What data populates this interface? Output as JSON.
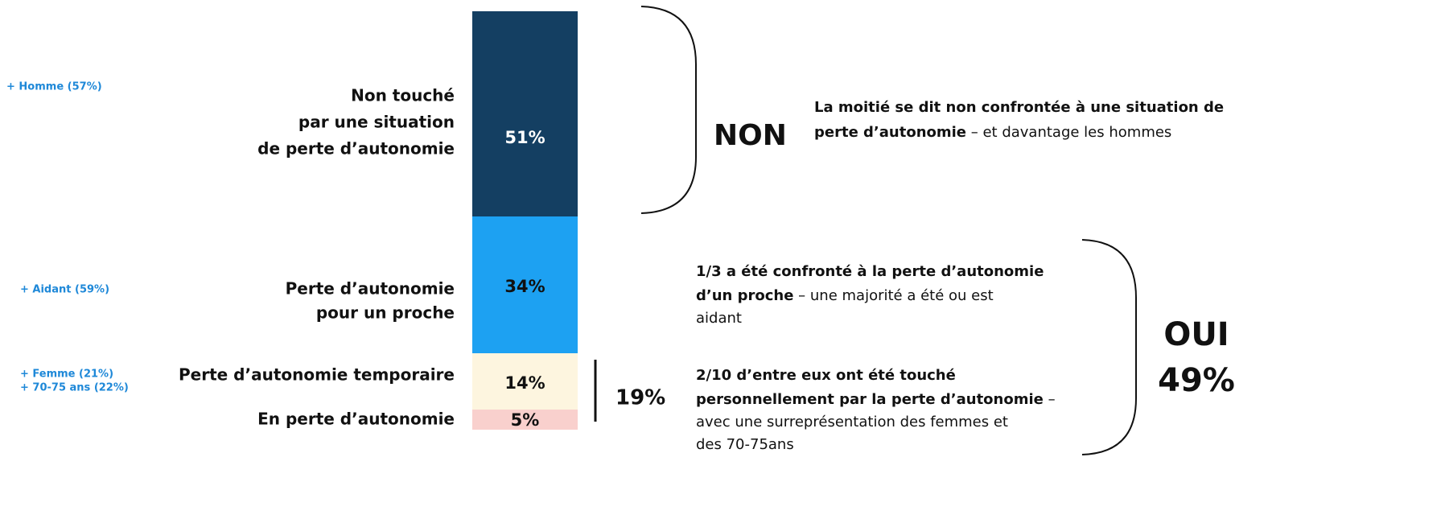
{
  "chart_data": {
    "type": "stacked_bar",
    "categories": [
      [
        "Non touché",
        "par une situation",
        "de perte d’autonomie"
      ],
      [
        "Perte d’autonomie",
        "pour un proche"
      ],
      [
        "Perte d’autonomie temporaire"
      ],
      [
        "En perte d’autonomie"
      ]
    ],
    "values": [
      51,
      34,
      14,
      5
    ],
    "value_labels": [
      "51%",
      "34%",
      "14%",
      "5%"
    ],
    "colors": [
      "#143f62",
      "#1da1f2",
      "#fdf5df",
      "#f9d0cd"
    ],
    "subgroup_notes": [
      [
        "+ Homme (57%)"
      ],
      [
        "+ Aidant (59%)"
      ],
      [
        "+ Femme (21%)",
        "+ 70-75 ans (22%)"
      ]
    ],
    "subtotal_label": "19%",
    "groups": [
      {
        "label": "NON",
        "blocks": [
          [
            [
              {
                "text": "La moitié se dit non confrontée à une situation de",
                "bold": true
              }
            ],
            [
              {
                "text": "perte d’autonomie",
                "bold": true
              },
              {
                "text": " – et davantage les hommes",
                "bold": false
              }
            ]
          ]
        ]
      },
      {
        "label": "OUI",
        "value_label": "49%",
        "blocks": [
          [
            [
              {
                "text": "1/3 a été confronté à la perte d’autonomie",
                "bold": true
              }
            ],
            [
              {
                "text": "d’un proche",
                "bold": true
              },
              {
                "text": " – une majorité a été ou est",
                "bold": false
              }
            ],
            [
              {
                "text": "aidant",
                "bold": false
              }
            ]
          ],
          [
            [
              {
                "text": "2/10 d’entre eux ont été touché",
                "bold": true
              }
            ],
            [
              {
                "text": "personnellement  par la perte d’autonomie",
                "bold": true
              },
              {
                "text": " –",
                "bold": false
              }
            ],
            [
              {
                "text": "avec une surreprésentation des femmes et",
                "bold": false
              }
            ],
            [
              {
                "text": "des 70-75ans",
                "bold": false
              }
            ]
          ]
        ]
      }
    ]
  }
}
